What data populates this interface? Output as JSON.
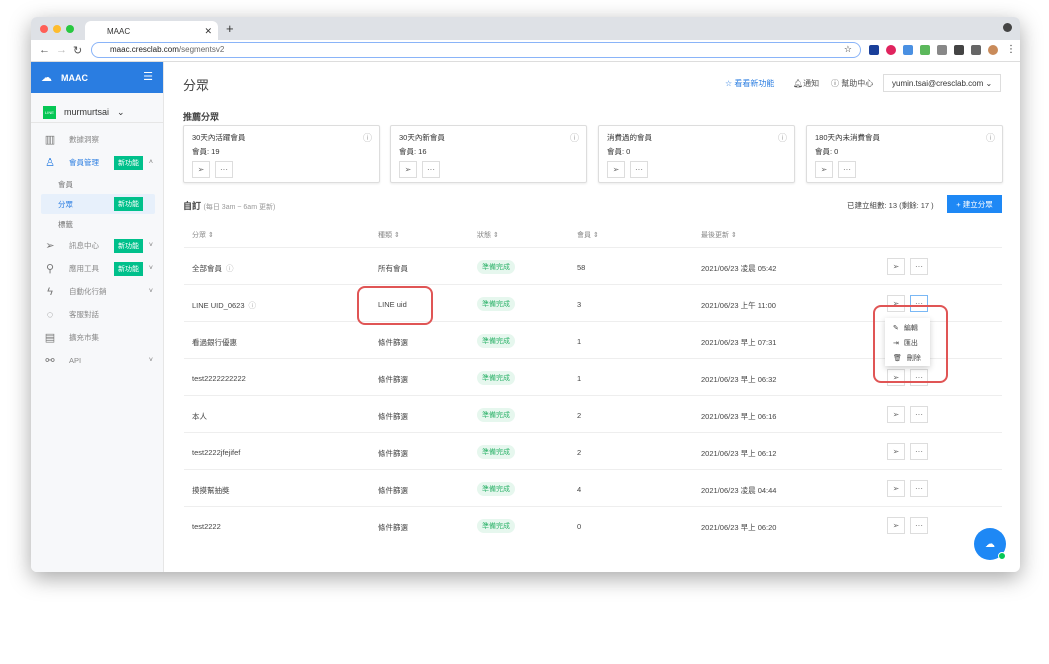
{
  "browser": {
    "tab_title": "MAAC",
    "url_host": "maac.cresclab.com",
    "url_path": "/segmentsv2"
  },
  "sidebar": {
    "brand": "MAAC",
    "account": "murmurtsai",
    "line_logo": "LINE",
    "items": [
      {
        "label": "數據洞察",
        "icon": "chart-icon"
      },
      {
        "label": "會員管理",
        "icon": "user-icon",
        "badge": "新功能",
        "active": true
      },
      {
        "label": "訊息中心",
        "icon": "send-icon",
        "badge": "新功能"
      },
      {
        "label": "應用工具",
        "icon": "rocket-icon",
        "badge": "新功能"
      },
      {
        "label": "自動化行銷",
        "icon": "bolt-icon"
      },
      {
        "label": "客服對話",
        "icon": "chat-icon"
      },
      {
        "label": "擴充市集",
        "icon": "store-icon"
      },
      {
        "label": "API",
        "icon": "api-icon"
      }
    ],
    "subitems": [
      {
        "label": "會員"
      },
      {
        "label": "分眾",
        "badge": "新功能"
      },
      {
        "label": "標籤"
      }
    ]
  },
  "header": {
    "title": "分眾",
    "whats_new": "看看新功能",
    "notify": "通知",
    "help": "幫助中心",
    "user": "yumin.tsai@cresclab.com"
  },
  "recommended": {
    "title": "推薦分眾",
    "cards": [
      {
        "name": "30天內活躍會員",
        "members": "會員: 19"
      },
      {
        "name": "30天內新會員",
        "members": "會員: 16"
      },
      {
        "name": "消費過的會員",
        "members": "會員: 0"
      },
      {
        "name": "180天內未消費會員",
        "members": "會員: 0"
      }
    ]
  },
  "custom": {
    "title": "自訂",
    "note": "(每日 3am ~ 6am 更新)",
    "count": "已建立組數: 13 (剩餘: 17 )",
    "create": "+ 建立分眾"
  },
  "table": {
    "headers": [
      "分眾",
      "種類",
      "狀態",
      "會員",
      "最後更新"
    ],
    "rows": [
      [
        "全部會員",
        "所有會員",
        "準備完成",
        "58",
        "2021/06/23 凌晨 05:42"
      ],
      [
        "LINE UID_0623",
        "LINE uid",
        "準備完成",
        "3",
        "2021/06/23 上午 11:00"
      ],
      [
        "看過銀行優惠",
        "條件篩選",
        "準備完成",
        "1",
        "2021/06/23 早上 07:31"
      ],
      [
        "test2222222222",
        "條件篩選",
        "準備完成",
        "1",
        "2021/06/23 早上 06:32"
      ],
      [
        "本人",
        "條件篩選",
        "準備完成",
        "2",
        "2021/06/23 早上 06:16"
      ],
      [
        "test2222jfejifef",
        "條件篩選",
        "準備完成",
        "2",
        "2021/06/23 早上 06:12"
      ],
      [
        "摸摸幫抽獎",
        "條件篩選",
        "準備完成",
        "4",
        "2021/06/23 凌晨 04:44"
      ],
      [
        "test2222",
        "條件篩選",
        "準備完成",
        "0",
        "2021/06/23 早上 06:20"
      ]
    ]
  },
  "menu": {
    "items": [
      "編輯",
      "匯出",
      "刪除"
    ]
  },
  "colors": {
    "brand": "#2a7de1",
    "new_badge": "#00c08b",
    "status": "#2fb36b",
    "annotation": "#e05555"
  }
}
